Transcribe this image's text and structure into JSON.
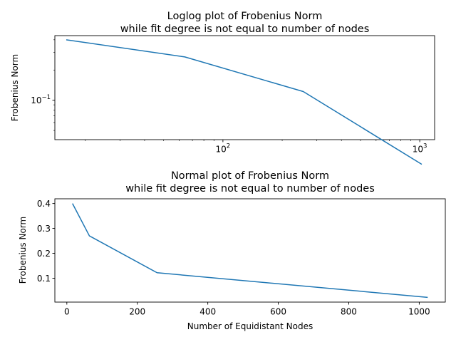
{
  "colors": {
    "series": "#1f77b4"
  },
  "chart_data": [
    {
      "type": "line",
      "title": [
        "Loglog plot of Frobenius Norm",
        "while fit degree is not equal to number of nodes"
      ],
      "xlabel": "",
      "ylabel": "Frobenius Norm",
      "xscale": "log",
      "yscale": "log",
      "xlim": [
        14,
        1190
      ],
      "ylim": [
        0.0405,
        0.44
      ],
      "grid": false,
      "legend": "none",
      "xticks": [
        {
          "value": 100,
          "base": "10",
          "exp": "2"
        },
        {
          "value": 1000,
          "base": "10",
          "exp": "3"
        }
      ],
      "yticks": [
        {
          "value": 0.1,
          "base": "10",
          "exp": "−1"
        }
      ],
      "series": [
        {
          "x": [
            16,
            64,
            256,
            1024
          ],
          "y": [
            0.4,
            0.27,
            0.122,
            0.023
          ]
        }
      ]
    },
    {
      "type": "line",
      "title": [
        "Normal plot of Frobenius Norm",
        "while fit degree is not equal to number of nodes"
      ],
      "xlabel": "Number of Equidistant Nodes",
      "ylabel": "Frobenius Norm",
      "xscale": "linear",
      "yscale": "linear",
      "xlim": [
        -34,
        1074
      ],
      "ylim": [
        0.004,
        0.419
      ],
      "grid": false,
      "legend": "none",
      "xticks": [
        {
          "value": 0,
          "label": "0"
        },
        {
          "value": 200,
          "label": "200"
        },
        {
          "value": 400,
          "label": "400"
        },
        {
          "value": 600,
          "label": "600"
        },
        {
          "value": 800,
          "label": "800"
        },
        {
          "value": 1000,
          "label": "1000"
        }
      ],
      "yticks": [
        {
          "value": 0.1,
          "label": "0.1"
        },
        {
          "value": 0.2,
          "label": "0.2"
        },
        {
          "value": 0.3,
          "label": "0.3"
        },
        {
          "value": 0.4,
          "label": "0.4"
        }
      ],
      "series": [
        {
          "x": [
            16,
            64,
            256,
            1024
          ],
          "y": [
            0.4,
            0.27,
            0.122,
            0.023
          ]
        }
      ]
    }
  ]
}
